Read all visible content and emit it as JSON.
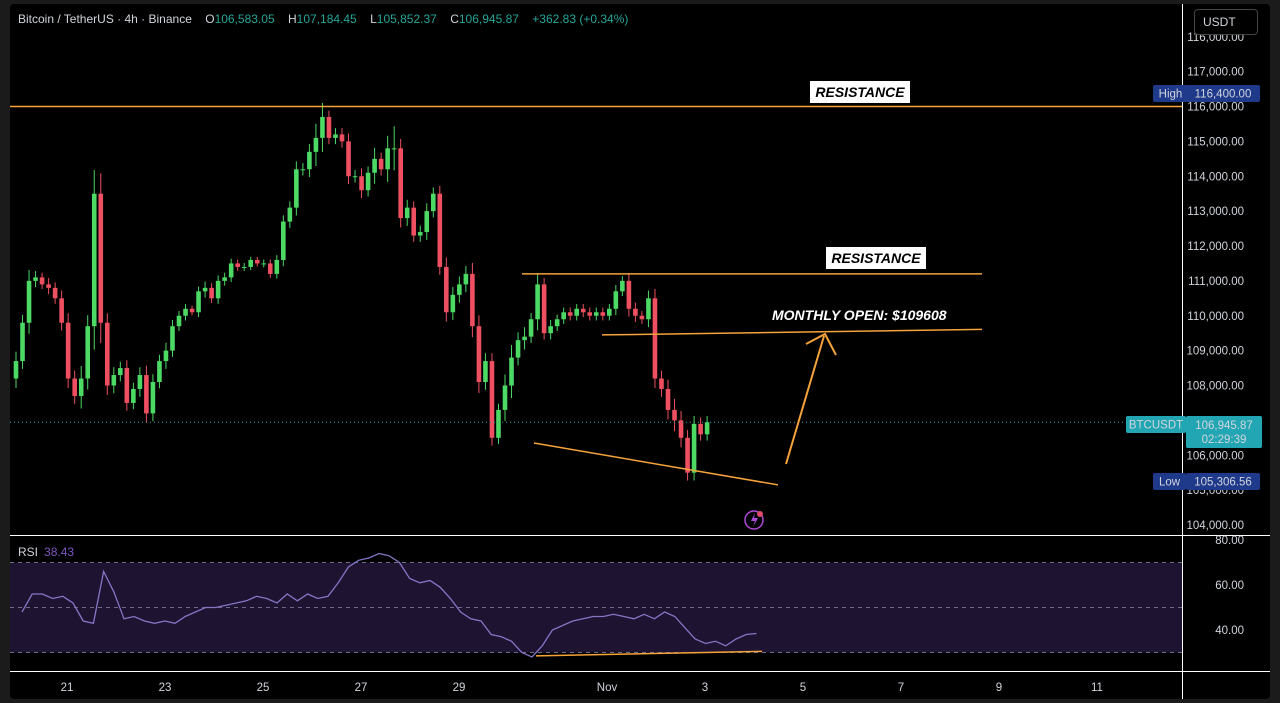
{
  "header": {
    "symbol": "Bitcoin / TetherUS · 4h · Binance",
    "o_label": "O",
    "o_value": "106,583.05",
    "h_label": "H",
    "h_value": "107,184.45",
    "l_label": "L",
    "l_value": "105,852.37",
    "c_label": "C",
    "c_value": "106,945.87",
    "change": "+362.83 (+0.34%)"
  },
  "currency_button": "USDT",
  "annotations": {
    "resistance_top": "RESISTANCE",
    "resistance_mid": "RESISTANCE",
    "monthly_open": "MONTHLY OPEN: $109608"
  },
  "price_scale": {
    "ticks": [
      "116,000.00",
      "117,000.00",
      "116,000.00",
      "115,000.00",
      "114,000.00",
      "113,000.00",
      "112,000.00",
      "111,000.00",
      "110,000.00",
      "109,000.00",
      "108,000.00",
      "107,000.00",
      "106,000.00",
      "105,000.00",
      "104,000.00"
    ],
    "high_label": "High",
    "high_value": "116,400.00",
    "current_symbol": "BTCUSDT",
    "current_value": "106,945.87",
    "countdown": "02:29:39",
    "low_label": "Low",
    "low_value": "105,306.56"
  },
  "rsi": {
    "label": "RSI",
    "value": "38.43",
    "ticks": [
      "80.00",
      "60.00",
      "40.00"
    ]
  },
  "x_axis": [
    "21",
    "23",
    "25",
    "27",
    "29",
    "Nov",
    "3",
    "5",
    "7",
    "9",
    "11"
  ],
  "colors": {
    "up": "#4cd964",
    "down": "#ef5061",
    "orange": "#f5a33a",
    "rsi_line": "#8674c4",
    "rsi_band": "#1e1432"
  },
  "chart_data": {
    "type": "candlestick",
    "title": "Bitcoin / TetherUS · 4h · Binance",
    "xlabel": "",
    "ylabel": "",
    "ylim": [
      104000,
      118000
    ],
    "x_ticks": [
      "21",
      "23",
      "25",
      "27",
      "29",
      "Nov",
      "3",
      "5",
      "7",
      "9",
      "11"
    ],
    "candles_close": [
      108700,
      109800,
      111000,
      111100,
      110900,
      110800,
      110500,
      109800,
      108200,
      107700,
      108200,
      109700,
      113500,
      109800,
      108000,
      108300,
      108500,
      107500,
      107900,
      108300,
      107200,
      108100,
      108700,
      109000,
      109700,
      110000,
      110200,
      110100,
      110700,
      110800,
      110500,
      111000,
      111100,
      111500,
      111400,
      111400,
      111600,
      111500,
      111500,
      111200,
      111600,
      112700,
      113100,
      114200,
      114200,
      114700,
      115100,
      115700,
      115100,
      115200,
      115000,
      114000,
      114000,
      113600,
      114100,
      114500,
      114200,
      114800,
      114800,
      112800,
      113100,
      112300,
      112400,
      113000,
      113500,
      111400,
      110100,
      110600,
      110900,
      111200,
      109700,
      108100,
      108700,
      106500,
      107300,
      108000,
      108800,
      109300,
      109400,
      109900,
      110900,
      109500,
      109700,
      109900,
      110100,
      110000,
      110200,
      110100,
      110000,
      110100,
      110000,
      110200,
      110700,
      111000,
      110200,
      110000,
      109900,
      110500,
      108200,
      107900,
      107300,
      107000,
      106500,
      105500,
      106900,
      106600,
      106945.87
    ],
    "resistance_levels": [
      116000,
      111200
    ],
    "monthly_open": 109608,
    "high": 116400.0,
    "low": 105306.56,
    "last": 106945.87,
    "rsi_series": [
      48,
      56,
      56,
      54,
      55,
      52,
      44,
      43,
      66,
      57,
      45,
      46,
      44,
      43,
      44,
      43,
      46,
      48,
      50,
      50,
      51,
      52,
      53,
      55,
      54,
      52,
      56,
      53,
      56,
      54,
      55,
      61,
      68,
      71,
      72,
      74,
      73,
      70,
      63,
      61,
      62,
      59,
      54,
      48,
      45,
      44,
      38,
      37,
      35,
      30,
      28,
      33,
      40,
      42,
      44,
      45,
      46,
      46,
      47,
      46,
      45,
      47,
      45,
      48,
      46,
      41,
      36,
      34,
      35,
      33,
      36,
      38,
      38.43
    ],
    "rsi_levels": [
      70,
      50,
      30
    ],
    "rsi_ylim": [
      22,
      82
    ]
  }
}
